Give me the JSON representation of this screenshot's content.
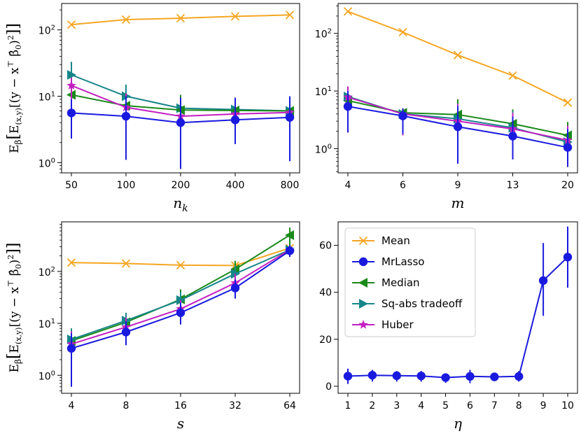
{
  "colors": {
    "Mean": "#f5a623",
    "MrLasso": "#1a1adf",
    "Median": "#1a8a1a",
    "Sq-abs tradeoff": "#17868a",
    "Huber": "#c21fc2"
  },
  "markers": {
    "Mean": "x",
    "MrLasso": "circle",
    "Median": "tri-left",
    "Sq-abs tradeoff": "tri-right",
    "Huber": "star"
  },
  "chart_data": [
    {
      "type": "line",
      "yscale": "log",
      "xlabel": "n_k",
      "ylabel": "E_β[E_(x,y)[(y − x^T β̂_0)^2]]",
      "categories": [
        "50",
        "100",
        "200",
        "400",
        "800"
      ],
      "ylim": [
        0.7,
        250
      ],
      "yticks": [
        {
          "v": 1,
          "l": "10^0"
        },
        {
          "v": 10,
          "l": "10^1"
        },
        {
          "v": 100,
          "l": "10^2"
        }
      ],
      "series": [
        {
          "name": "Mean",
          "values": [
            120,
            143,
            150,
            160,
            168
          ],
          "err_low": [
            118,
            141,
            148,
            158,
            166
          ],
          "err_high": [
            122,
            145,
            152,
            162,
            170
          ]
        },
        {
          "name": "Sq-abs tradeoff",
          "values": [
            21,
            10,
            6.6,
            6.3,
            6
          ],
          "err_low": [
            13,
            6,
            4,
            4.5,
            4
          ],
          "err_high": [
            33,
            15,
            10.5,
            9.5,
            10
          ]
        },
        {
          "name": "Median",
          "values": [
            10.5,
            7.2,
            6.2,
            6.1,
            6
          ],
          "err_low": [
            4,
            1.8,
            1.8,
            2,
            1.6
          ],
          "err_high": [
            15,
            11,
            10.5,
            9.5,
            10
          ]
        },
        {
          "name": "Huber",
          "values": [
            14.5,
            6.8,
            5,
            5.4,
            5.7
          ],
          "err_low": [
            4.5,
            1.5,
            1.2,
            2.5,
            1.5
          ],
          "err_high": [
            19,
            11,
            9,
            9,
            10
          ]
        },
        {
          "name": "MrLasso",
          "values": [
            5.6,
            5,
            4,
            4.4,
            4.8
          ],
          "err_low": [
            2.3,
            1.1,
            0.8,
            1.9,
            1.05
          ],
          "err_high": [
            9,
            10,
            9.5,
            9.5,
            10
          ]
        }
      ]
    },
    {
      "type": "line",
      "yscale": "log",
      "xlabel": "m",
      "ylabel": "",
      "categories": [
        "4",
        "6",
        "9",
        "13",
        "20"
      ],
      "ylim": [
        0.38,
        330
      ],
      "yticks": [
        {
          "v": 1,
          "l": "10^0"
        },
        {
          "v": 10,
          "l": "10^1"
        },
        {
          "v": 100,
          "l": "10^2"
        }
      ],
      "series": [
        {
          "name": "Mean",
          "values": [
            240,
            105,
            42,
            18.5,
            6.3
          ],
          "err_low": [
            235,
            103,
            41,
            18,
            6.1
          ],
          "err_high": [
            245,
            107,
            43,
            19,
            6.5
          ]
        },
        {
          "name": "Median",
          "values": [
            6.8,
            4.2,
            3.9,
            2.7,
            1.7
          ],
          "err_low": [
            2.2,
            1.8,
            0.9,
            0.75,
            0.6
          ],
          "err_high": [
            12,
            5,
            7.2,
            4.8,
            2.9
          ]
        },
        {
          "name": "Sq-abs tradeoff",
          "values": [
            8,
            4,
            3.3,
            2.3,
            1.3
          ],
          "err_low": [
            2.5,
            1.8,
            0.9,
            0.8,
            0.55
          ],
          "err_high": [
            12,
            5,
            6,
            4.5,
            2.2
          ]
        },
        {
          "name": "Huber",
          "values": [
            7.8,
            4,
            3,
            2.2,
            1.4
          ],
          "err_low": [
            2,
            1.7,
            0.55,
            0.8,
            0.55
          ],
          "err_high": [
            12,
            5,
            6,
            4.2,
            2.5
          ]
        },
        {
          "name": "MrLasso",
          "values": [
            5.4,
            3.7,
            2.4,
            1.65,
            1.05
          ],
          "err_low": [
            1.9,
            1.8,
            0.55,
            0.65,
            0.48
          ],
          "err_high": [
            10,
            5,
            5.5,
            3.6,
            2.2
          ]
        }
      ]
    },
    {
      "type": "line",
      "yscale": "log",
      "xlabel": "s",
      "ylabel": "E_β[E_(x,y)[(y − x^T β̂_0)^2]]",
      "categories": [
        "4",
        "8",
        "16",
        "32",
        "64"
      ],
      "ylim": [
        0.45,
        900
      ],
      "yticks": [
        {
          "v": 1,
          "l": "10^0"
        },
        {
          "v": 10,
          "l": "10^1"
        },
        {
          "v": 100,
          "l": "10^2"
        }
      ],
      "series": [
        {
          "name": "Mean",
          "values": [
            148,
            142,
            132,
            130,
            280
          ],
          "err_low": [
            146,
            140,
            130,
            128,
            270
          ],
          "err_high": [
            150,
            144,
            134,
            132,
            290
          ]
        },
        {
          "name": "Median",
          "values": [
            4.6,
            10.5,
            29,
            110,
            500
          ],
          "err_low": [
            1.2,
            5,
            18,
            75,
            300
          ],
          "err_high": [
            8,
            16,
            45,
            160,
            700
          ]
        },
        {
          "name": "Sq-abs tradeoff",
          "values": [
            4.9,
            11.3,
            28,
            90,
            260
          ],
          "err_low": [
            1.5,
            6,
            16,
            60,
            200
          ],
          "err_high": [
            8,
            16,
            40,
            130,
            320
          ]
        },
        {
          "name": "Huber",
          "values": [
            4,
            8.5,
            19,
            60,
            260
          ],
          "err_low": [
            1.2,
            4.5,
            12,
            40,
            200
          ],
          "err_high": [
            7,
            13,
            28,
            90,
            320
          ]
        },
        {
          "name": "MrLasso",
          "values": [
            3.3,
            6.8,
            16,
            48,
            250
          ],
          "err_low": [
            0.6,
            3.8,
            9.5,
            30,
            190
          ],
          "err_high": [
            6.5,
            11,
            25,
            70,
            320
          ]
        }
      ]
    },
    {
      "type": "line",
      "yscale": "linear",
      "xlabel": "η",
      "ylabel": "",
      "categories": [
        "1",
        "2",
        "3",
        "4",
        "5",
        "6",
        "7",
        "8",
        "9",
        "10"
      ],
      "ylim": [
        -3,
        70
      ],
      "yticks": [
        {
          "v": 0,
          "l": "0"
        },
        {
          "v": 20,
          "l": "20"
        },
        {
          "v": 40,
          "l": "40"
        },
        {
          "v": 60,
          "l": "60"
        }
      ],
      "legend": {
        "placement": "top-left",
        "entries": [
          "Mean",
          "MrLasso",
          "Median",
          "Sq-abs tradeoff",
          "Huber"
        ]
      },
      "series": [
        {
          "name": "MrLasso",
          "values": [
            4.3,
            4.7,
            4.5,
            4.4,
            3.7,
            4.2,
            4,
            4.2,
            45,
            55
          ],
          "err_low": [
            1,
            2,
            2,
            2,
            1.5,
            1.3,
            2.5,
            2,
            30,
            42
          ],
          "err_high": [
            7.5,
            7,
            6.5,
            6.5,
            5.5,
            7,
            5.5,
            6.5,
            61,
            68
          ]
        }
      ]
    }
  ]
}
